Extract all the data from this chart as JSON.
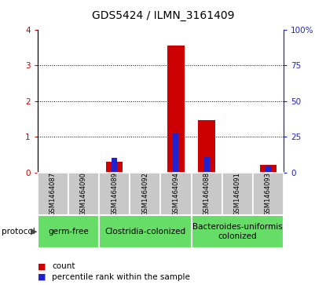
{
  "title": "GDS5424 / ILMN_3161409",
  "samples": [
    "GSM1464087",
    "GSM1464090",
    "GSM1464089",
    "GSM1464092",
    "GSM1464094",
    "GSM1464088",
    "GSM1464091",
    "GSM1464093"
  ],
  "count_values": [
    0.0,
    0.0,
    0.3,
    0.0,
    3.57,
    1.47,
    0.0,
    0.22
  ],
  "percentile_values": [
    0.0,
    0.0,
    10.0,
    0.0,
    27.5,
    11.0,
    0.0,
    5.0
  ],
  "groups": [
    {
      "label": "germ-free",
      "start": 0,
      "end": 1
    },
    {
      "label": "Clostridia-colonized",
      "start": 2,
      "end": 4
    },
    {
      "label": "Bacteroides-uniformis\ncolonized",
      "start": 5,
      "end": 7
    }
  ],
  "ylim_left": [
    0,
    4
  ],
  "ylim_right": [
    0,
    100
  ],
  "yticks_left": [
    0,
    1,
    2,
    3,
    4
  ],
  "yticks_right": [
    0,
    25,
    50,
    75,
    100
  ],
  "yticklabels_right": [
    "0",
    "25",
    "50",
    "75",
    "100%"
  ],
  "bar_color_red": "#CC0000",
  "bar_color_blue": "#2222CC",
  "bg_color_sample": "#C8C8C8",
  "bg_color_group": "#66DD66",
  "title_fontsize": 10,
  "tick_fontsize": 7.5,
  "sample_fontsize": 6,
  "group_fontsize": 7.5
}
